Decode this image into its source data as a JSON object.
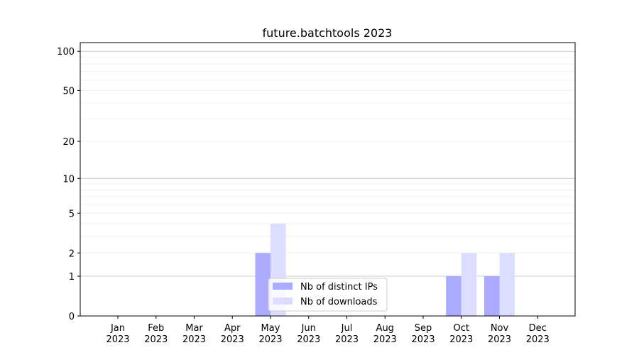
{
  "chart_data": {
    "type": "bar",
    "title": "future.batchtools 2023",
    "xlabel": "",
    "ylabel": "",
    "yscale": "symlog (log of 1+y)",
    "ylim": [
      0,
      116
    ],
    "grid": true,
    "legend_position": "bottom-center",
    "categories": [
      "Jan\n2023",
      "Feb\n2023",
      "Mar\n2023",
      "Apr\n2023",
      "May\n2023",
      "Jun\n2023",
      "Jul\n2023",
      "Aug\n2023",
      "Sep\n2023",
      "Oct\n2023",
      "Nov\n2023",
      "Dec\n2023"
    ],
    "yticks": [
      0,
      1,
      2,
      5,
      10,
      20,
      50,
      100
    ],
    "series": [
      {
        "name": "Nb of distinct IPs",
        "color": "#aaaaff",
        "values": [
          0,
          0,
          0,
          0,
          2,
          0,
          0,
          0,
          0,
          1,
          1,
          0
        ]
      },
      {
        "name": "Nb of downloads",
        "color": "#ddddff",
        "values": [
          0,
          0,
          0,
          0,
          4,
          0,
          0,
          0,
          0,
          2,
          2,
          0
        ]
      }
    ]
  }
}
